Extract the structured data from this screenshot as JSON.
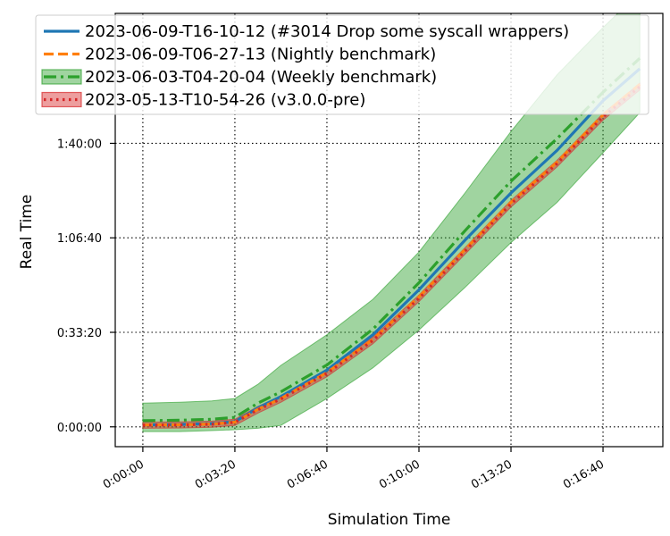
{
  "chart_data": {
    "type": "line",
    "xlabel": "Simulation Time",
    "ylabel": "Real Time",
    "x_tick_labels": [
      "0:00:00",
      "0:03:20",
      "0:06:40",
      "0:10:00",
      "0:13:20",
      "0:16:40"
    ],
    "y_tick_labels": [
      "0:00:00",
      "0:33:20",
      "1:06:40",
      "1:40:00"
    ],
    "x_ticks": [
      0,
      200,
      400,
      600,
      800,
      1000
    ],
    "y_ticks": [
      0,
      2000,
      4000,
      6000
    ],
    "xlim": [
      -60,
      1130
    ],
    "ylim": [
      -420,
      8750
    ],
    "grid": true,
    "legend_position": "top",
    "series": [
      {
        "name": "2023-06-09-T16-10-12 (#3014 Drop some syscall wrappers)",
        "color": "#1f77b4",
        "style": "solid",
        "x": [
          0,
          80,
          150,
          200,
          250,
          300,
          400,
          500,
          600,
          700,
          800,
          900,
          1000,
          1080
        ],
        "y": [
          40,
          50,
          70,
          110,
          400,
          640,
          1200,
          1950,
          2900,
          3950,
          4950,
          5850,
          6900,
          7580
        ]
      },
      {
        "name": "2023-06-09-T06-27-13 (Nightly benchmark)",
        "color": "#ff7f0e",
        "style": "dashed",
        "x": [
          0,
          80,
          150,
          200,
          250,
          300,
          400,
          500,
          600,
          700,
          800,
          900,
          1000,
          1080
        ],
        "y": [
          40,
          45,
          60,
          100,
          370,
          600,
          1150,
          1850,
          2750,
          3750,
          4750,
          5600,
          6600,
          7250
        ]
      },
      {
        "name": "2023-06-03-T04-20-04 (Weekly benchmark)",
        "color": "#2ca02c",
        "style": "dashdot",
        "x": [
          0,
          80,
          150,
          200,
          250,
          300,
          400,
          500,
          600,
          700,
          800,
          900,
          1000,
          1080
        ],
        "y": [
          130,
          140,
          160,
          200,
          500,
          740,
          1310,
          2070,
          3050,
          4150,
          5200,
          6100,
          7080,
          7800
        ],
        "band_low": [
          -100,
          -100,
          -80,
          -60,
          -30,
          30,
          600,
          1250,
          2050,
          2950,
          3900,
          4750,
          5800,
          6650
        ],
        "band_high": [
          500,
          520,
          550,
          600,
          900,
          1300,
          1950,
          2700,
          3700,
          4950,
          6250,
          7450,
          8450,
          9200
        ]
      },
      {
        "name": "2023-05-13-T10-54-26 (v3.0.0-pre)",
        "color": "#d62728",
        "style": "dotted",
        "x": [
          0,
          80,
          150,
          200,
          250,
          300,
          400,
          500,
          600,
          700,
          800,
          900,
          1000,
          1080
        ],
        "y": [
          35,
          40,
          55,
          95,
          360,
          590,
          1130,
          1830,
          2720,
          3720,
          4720,
          5570,
          6560,
          7200
        ],
        "band_low": [
          -30,
          -25,
          -10,
          30,
          290,
          520,
          1060,
          1760,
          2650,
          3650,
          4650,
          5500,
          6490,
          7130
        ],
        "band_high": [
          100,
          105,
          120,
          160,
          430,
          660,
          1200,
          1900,
          2790,
          3790,
          4790,
          5640,
          6630,
          7270
        ]
      }
    ]
  }
}
